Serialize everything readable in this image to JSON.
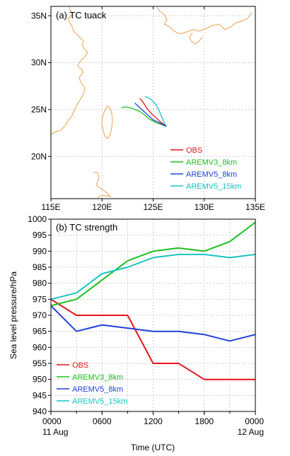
{
  "chart_data": [
    {
      "type": "line",
      "panel": "track-map",
      "title": "(a)  TC tuack",
      "x_ticks": [
        "115E",
        "120E",
        "125E",
        "130E",
        "135E"
      ],
      "y_ticks": [
        "20N",
        "25N",
        "30N",
        "35N"
      ],
      "xlim": [
        115,
        135
      ],
      "ylim": [
        15.5,
        36
      ],
      "grid": true,
      "legend_position": "bottom-right",
      "series": [
        {
          "name": "OBS",
          "color": "#e8141c",
          "x": [
            126.3,
            125.6,
            124.9,
            124.4,
            124.0,
            123.7
          ],
          "y": [
            23.2,
            23.8,
            24.5,
            25.1,
            25.8,
            26.2
          ]
        },
        {
          "name": "AREMV3_8km",
          "color": "#1fbf1f",
          "x": [
            126.3,
            125.3,
            124.6,
            124.2,
            123.7,
            123.0,
            122.4,
            121.9
          ],
          "y": [
            23.2,
            23.6,
            24.0,
            24.4,
            24.8,
            25.1,
            25.3,
            25.2
          ]
        },
        {
          "name": "AREMV5_8km",
          "color": "#2040d8",
          "x": [
            126.3,
            125.6,
            125.0,
            124.6,
            124.1,
            123.6,
            123.2
          ],
          "y": [
            23.2,
            23.6,
            23.9,
            24.3,
            24.8,
            25.3,
            25.7
          ]
        },
        {
          "name": "AREMV5_15km",
          "color": "#19c3c3",
          "x": [
            126.3,
            126.0,
            125.7,
            125.3,
            124.8,
            124.2
          ],
          "y": [
            23.2,
            23.8,
            24.6,
            25.5,
            26.1,
            26.4
          ]
        }
      ],
      "coastline_color": "#f0a050"
    },
    {
      "type": "line",
      "panel": "intensity",
      "title": "(b)  TC strength",
      "ylabel": "Sea level pressure/hPa",
      "xlabel": "Time (UTC)",
      "x": [
        0,
        3,
        6,
        9,
        12,
        15,
        18,
        21,
        24
      ],
      "x_ticks": [
        {
          "value": 0,
          "label": "0000",
          "sublabel": "11 Aug"
        },
        {
          "value": 6,
          "label": "0600",
          "sublabel": ""
        },
        {
          "value": 12,
          "label": "1200",
          "sublabel": ""
        },
        {
          "value": 18,
          "label": "1800",
          "sublabel": ""
        },
        {
          "value": 24,
          "label": "0000",
          "sublabel": "12 Aug"
        }
      ],
      "y_ticks": [
        940,
        945,
        950,
        955,
        960,
        965,
        970,
        975,
        980,
        985,
        990,
        995,
        1000
      ],
      "xlim": [
        0,
        24
      ],
      "ylim": [
        940,
        1000
      ],
      "grid": true,
      "legend_position": "bottom-left",
      "series": [
        {
          "name": "OBS",
          "color": "#e8141c",
          "values": [
            975,
            970,
            970,
            970,
            955,
            955,
            950,
            950,
            950
          ]
        },
        {
          "name": "AREMV3_8km",
          "color": "#1fbf1f",
          "values": [
            973,
            975,
            981,
            987,
            990,
            991,
            990,
            993,
            999
          ]
        },
        {
          "name": "AREMV5_8km",
          "color": "#2040d8",
          "values": [
            973,
            965,
            967,
            966,
            965,
            965,
            964,
            962,
            964
          ]
        },
        {
          "name": "AREMV5_15km",
          "color": "#19c3c3",
          "values": [
            975,
            977,
            983,
            985,
            988,
            989,
            989,
            988,
            989
          ]
        }
      ]
    }
  ]
}
